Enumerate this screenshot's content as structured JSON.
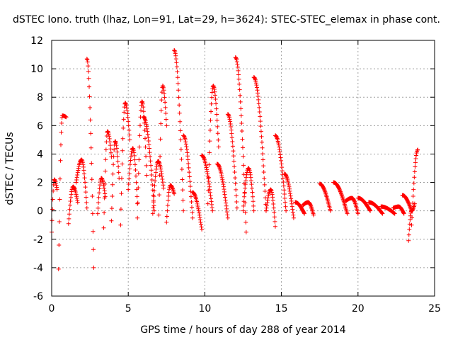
{
  "chart_data": {
    "type": "scatter",
    "title": "dSTEC Iono. truth (lhaz, Lon=91, Lat=29, h=3624): STEC-STEC_elemax in phase cont.",
    "xlabel": "GPS time / hours of day 288 of year 2014",
    "ylabel": "dSTEC  / TECUs",
    "xlim": [
      0,
      25
    ],
    "ylim": [
      -6,
      12
    ],
    "xticks": [
      0,
      5,
      10,
      15,
      20,
      25
    ],
    "yticks": [
      -6,
      -4,
      -2,
      0,
      2,
      4,
      6,
      8,
      10,
      12
    ],
    "grid": true,
    "marker": "+",
    "marker_color": "#ff0000",
    "arcs": [
      {
        "t_start": 0.0,
        "t_end": 0.35,
        "start": -1.5,
        "peak": 2.2,
        "end": 1.5
      },
      {
        "t_start": 0.45,
        "t_end": 0.95,
        "start": -4.1,
        "peak": 6.7,
        "end": 6.6
      },
      {
        "t_start": 1.1,
        "t_end": 1.7,
        "start": -0.9,
        "peak": 1.7,
        "end": 0.6
      },
      {
        "t_start": 1.6,
        "t_end": 2.3,
        "start": 2.0,
        "peak": 3.6,
        "end": 0.2
      },
      {
        "t_start": 2.3,
        "t_end": 2.75,
        "start": 10.7,
        "peak": 10.7,
        "end": -4.0
      },
      {
        "t_start": 3.0,
        "t_end": 3.5,
        "start": -0.2,
        "peak": 2.3,
        "end": 1.0
      },
      {
        "t_start": 3.4,
        "t_end": 3.9,
        "start": -1.2,
        "peak": 5.6,
        "end": 3.8
      },
      {
        "t_start": 3.9,
        "t_end": 4.4,
        "start": -0.7,
        "peak": 4.9,
        "end": 2.3
      },
      {
        "t_start": 4.5,
        "t_end": 5.1,
        "start": -1.0,
        "peak": 7.6,
        "end": 5.0
      },
      {
        "t_start": 5.0,
        "t_end": 5.6,
        "start": 1.5,
        "peak": 4.4,
        "end": 0.5
      },
      {
        "t_start": 5.6,
        "t_end": 6.2,
        "start": -0.5,
        "peak": 7.7,
        "end": 2.5
      },
      {
        "t_start": 6.0,
        "t_end": 6.7,
        "start": 6.6,
        "peak": 6.6,
        "end": 0.0
      },
      {
        "t_start": 6.6,
        "t_end": 7.3,
        "start": -0.2,
        "peak": 3.5,
        "end": 1.6
      },
      {
        "t_start": 7.0,
        "t_end": 7.5,
        "start": -0.3,
        "peak": 8.8,
        "end": 6.0
      },
      {
        "t_start": 7.5,
        "t_end": 8.0,
        "start": -0.8,
        "peak": 1.8,
        "end": 1.2
      },
      {
        "t_start": 8.0,
        "t_end": 8.6,
        "start": 11.3,
        "peak": 11.3,
        "end": 0.0
      },
      {
        "t_start": 8.6,
        "t_end": 9.2,
        "start": 5.3,
        "peak": 5.3,
        "end": -0.5
      },
      {
        "t_start": 9.2,
        "t_end": 9.8,
        "start": 1.3,
        "peak": 1.3,
        "end": -1.3
      },
      {
        "t_start": 9.8,
        "t_end": 10.5,
        "start": 3.9,
        "peak": 3.9,
        "end": 0.0
      },
      {
        "t_start": 10.2,
        "t_end": 10.9,
        "start": 0.5,
        "peak": 8.8,
        "end": 4.5
      },
      {
        "t_start": 10.8,
        "t_end": 11.5,
        "start": 3.3,
        "peak": 3.3,
        "end": -0.5
      },
      {
        "t_start": 11.5,
        "t_end": 12.1,
        "start": 6.8,
        "peak": 6.8,
        "end": 0.2
      },
      {
        "t_start": 12.0,
        "t_end": 12.7,
        "start": 10.8,
        "peak": 10.8,
        "end": -1.5
      },
      {
        "t_start": 12.5,
        "t_end": 13.2,
        "start": 0.0,
        "peak": 3.0,
        "end": 0.0
      },
      {
        "t_start": 13.2,
        "t_end": 14.0,
        "start": 9.4,
        "peak": 9.4,
        "end": 0.0
      },
      {
        "t_start": 14.0,
        "t_end": 14.6,
        "start": 0.0,
        "peak": 1.5,
        "end": -1.1
      },
      {
        "t_start": 14.6,
        "t_end": 15.3,
        "start": 5.3,
        "peak": 5.3,
        "end": 0.0
      },
      {
        "t_start": 15.2,
        "t_end": 15.8,
        "start": 2.6,
        "peak": 2.6,
        "end": -0.5
      },
      {
        "t_start": 15.9,
        "t_end": 16.5,
        "start": 0.6,
        "peak": 0.6,
        "end": -0.2
      },
      {
        "t_start": 16.4,
        "t_end": 17.1,
        "start": 0.4,
        "peak": 0.6,
        "end": -0.3
      },
      {
        "t_start": 17.5,
        "t_end": 18.2,
        "start": 1.9,
        "peak": 1.9,
        "end": 0.0
      },
      {
        "t_start": 18.4,
        "t_end": 19.3,
        "start": 2.0,
        "peak": 2.0,
        "end": -0.2
      },
      {
        "t_start": 19.2,
        "t_end": 20.0,
        "start": 0.7,
        "peak": 0.9,
        "end": -0.2
      },
      {
        "t_start": 20.0,
        "t_end": 20.8,
        "start": 0.9,
        "peak": 0.9,
        "end": 0.0
      },
      {
        "t_start": 20.7,
        "t_end": 21.6,
        "start": 0.6,
        "peak": 0.6,
        "end": -0.2
      },
      {
        "t_start": 21.5,
        "t_end": 22.4,
        "start": 0.3,
        "peak": 0.3,
        "end": -0.2
      },
      {
        "t_start": 22.3,
        "t_end": 23.0,
        "start": 0.2,
        "peak": 0.3,
        "end": -0.2
      },
      {
        "t_start": 22.9,
        "t_end": 23.5,
        "start": 1.1,
        "peak": 1.1,
        "end": 0.0
      },
      {
        "t_start": 23.3,
        "t_end": 23.7,
        "start": -2.1,
        "peak": 0.0,
        "end": 0.5
      },
      {
        "t_start": 23.5,
        "t_end": 23.9,
        "start": -1.0,
        "peak": 4.3,
        "end": 4.3
      }
    ]
  }
}
